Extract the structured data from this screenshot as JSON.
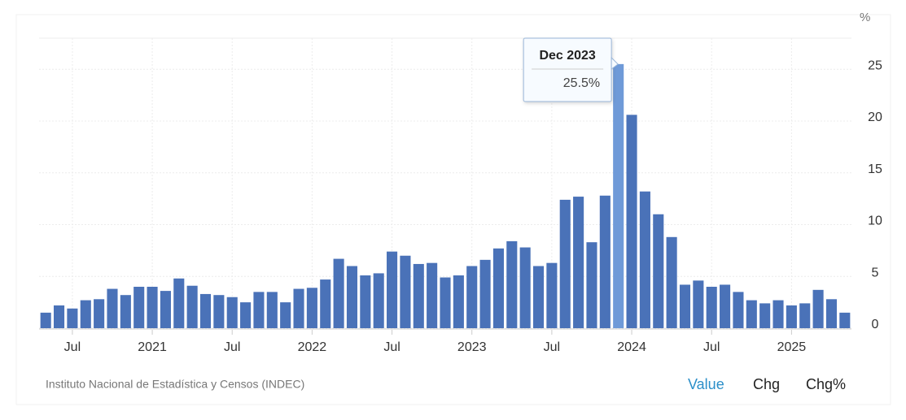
{
  "chart_data": {
    "type": "bar",
    "unit": "%",
    "categories": [
      null,
      null,
      "Jul",
      null,
      null,
      null,
      null,
      null,
      "2021",
      null,
      null,
      null,
      null,
      null,
      "Jul",
      null,
      null,
      null,
      null,
      null,
      "2022",
      null,
      null,
      null,
      null,
      null,
      "Jul",
      null,
      null,
      null,
      null,
      null,
      "2023",
      null,
      null,
      null,
      null,
      null,
      "Jul",
      null,
      null,
      null,
      null,
      null,
      "2024",
      null,
      null,
      null,
      null,
      null,
      "Jul",
      null,
      null,
      null,
      null,
      null,
      "2025",
      null,
      null,
      null,
      null
    ],
    "values": [
      1.5,
      2.2,
      1.9,
      2.7,
      2.8,
      3.8,
      3.2,
      4.0,
      4.0,
      3.6,
      4.8,
      4.1,
      3.3,
      3.2,
      3.0,
      2.5,
      3.5,
      3.5,
      2.5,
      3.8,
      3.9,
      4.7,
      6.7,
      6.0,
      5.1,
      5.3,
      7.4,
      7.0,
      6.2,
      6.3,
      4.9,
      5.1,
      6.0,
      6.6,
      7.7,
      8.4,
      7.8,
      6.0,
      6.3,
      12.4,
      12.7,
      8.3,
      12.8,
      25.5,
      20.6,
      13.2,
      11.0,
      8.8,
      4.2,
      4.6,
      4.0,
      4.2,
      3.5,
      2.7,
      2.4,
      2.7,
      2.2,
      2.4,
      3.7,
      2.8,
      1.5
    ],
    "value_labels": [
      null,
      null,
      null,
      null,
      null,
      null,
      null,
      null,
      null,
      null,
      null,
      null,
      null,
      null,
      null,
      null,
      null,
      null,
      null,
      null,
      null,
      null,
      null,
      null,
      null,
      null,
      null,
      null,
      null,
      null,
      null,
      null,
      null,
      null,
      null,
      null,
      null,
      null,
      null,
      null,
      null,
      null,
      null,
      "25.5%",
      null,
      null,
      null,
      null,
      null,
      null,
      null,
      null,
      null,
      null,
      null,
      null,
      null,
      null,
      null,
      null,
      null
    ],
    "tooltip_title": "Dec 2023",
    "color": "#4a72b8",
    "highlight_color": "#6f9ad8",
    "ylim": [
      0,
      28
    ],
    "yticks": [
      0,
      5,
      10,
      15,
      20,
      25
    ],
    "grid": true,
    "source": "Instituto Nacional de Estadística y Censos (INDEC)",
    "buttons": [
      "Value",
      "Chg",
      "Chg%"
    ],
    "active_button": "Value"
  }
}
